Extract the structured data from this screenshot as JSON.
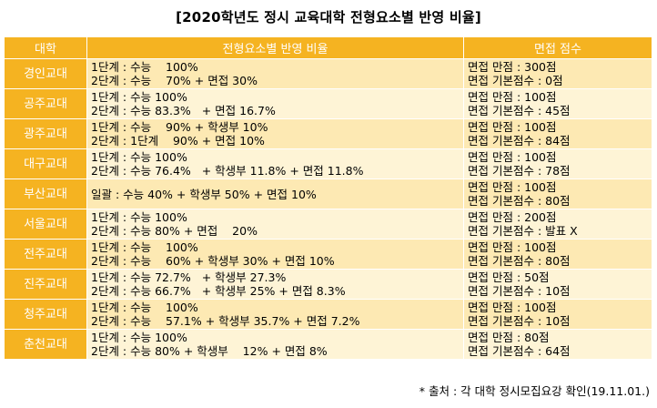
{
  "title": "[2020학년도 정시 교육대학 전형요소별 반영 비율]",
  "table": {
    "headers": [
      "대학",
      "전형요소별 반영 비율",
      "면접 점수"
    ],
    "rows": [
      {
        "name": "경인교대",
        "ratio": [
          "1단계 : 수능    100%",
          "2단계 : 수능    70% + 면접 30%"
        ],
        "interview": [
          "면접 만점 : 300점",
          "면접 기본점수 : 0점"
        ]
      },
      {
        "name": "공주교대",
        "ratio": [
          "1단계 : 수능 100%",
          "2단계 : 수능 83.3%   + 면접 16.7%"
        ],
        "interview": [
          "면접 만점 : 100점",
          "면접 기본점수 : 45점"
        ]
      },
      {
        "name": "광주교대",
        "ratio": [
          "1단계 : 수능    90% + 학생부 10%",
          "2단계 : 1단계    90% + 면접 10%"
        ],
        "interview": [
          "면접 만점 : 100점",
          "면접 기본점수 : 84점"
        ]
      },
      {
        "name": "대구교대",
        "ratio": [
          "1단계 : 수능 100%",
          "2단계 : 수능 76.4%   + 학생부 11.8% + 면접 11.8%"
        ],
        "interview": [
          "면접 만점 : 100점",
          "면접 기본점수 : 78점"
        ]
      },
      {
        "name": "부산교대",
        "ratio": [
          "일괄 : 수능 40% + 학생부 50% + 면접 10%"
        ],
        "interview": [
          "면접 만점 : 100점",
          "면접 기본점수 : 80점"
        ]
      },
      {
        "name": "서울교대",
        "ratio": [
          "1단계 : 수능 100%",
          "2단계 : 수능 80% + 면접    20%"
        ],
        "interview": [
          "면접 만점 : 200점",
          "면접 기본점수 : 발표 X"
        ]
      },
      {
        "name": "전주교대",
        "ratio": [
          "1단계 : 수능    100%",
          "2단계 : 수능    60% + 학생부 30% + 면접 10%"
        ],
        "interview": [
          "면접 만점 : 100점",
          "면접 기본점수 : 80점"
        ]
      },
      {
        "name": "진주교대",
        "ratio": [
          "1단계 : 수능 72.7%   + 학생부 27.3%",
          "2단계 : 수능 66.7%   + 학생부 25% + 면접 8.3%"
        ],
        "interview": [
          "면접 만점 : 50점",
          "면접 기본점수 : 10점"
        ]
      },
      {
        "name": "청주교대",
        "ratio": [
          "1단계 : 수능    100%",
          "2단계 : 수능    57.1% + 학생부 35.7% + 면접 7.2%"
        ],
        "interview": [
          "면접 만점 : 100점",
          "면접 기본점수 : 10점"
        ]
      },
      {
        "name": "춘천교대",
        "ratio": [
          "1단계 : 수능 100%",
          "2단계 : 수능 80% + 학생부    12% + 면접 8%"
        ],
        "interview": [
          "면접 만점 : 80점",
          "면접 기본점수 : 64점"
        ]
      }
    ]
  },
  "source": "* 출처 : 각 대학 정시모집요강 확인(19.11.01.)",
  "colors": {
    "header_bg": "#f5b321",
    "row_odd_bg": "#fde9b3",
    "row_even_bg": "#fef4d6"
  }
}
